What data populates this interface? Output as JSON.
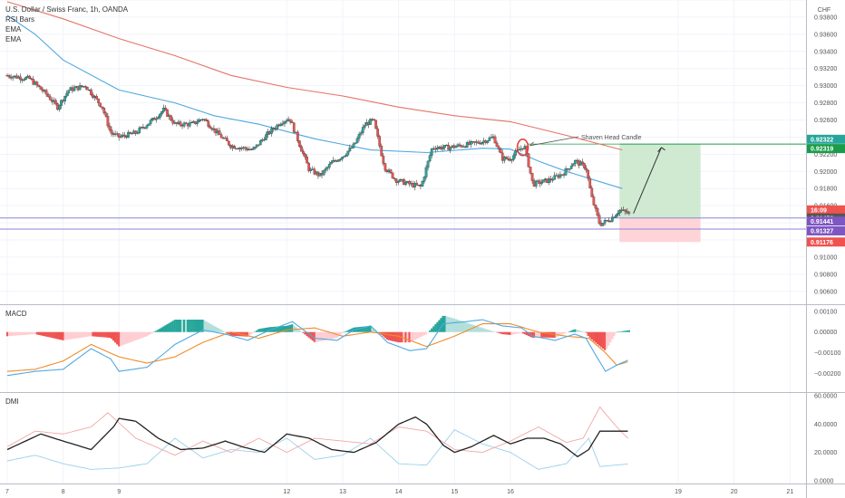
{
  "legend": {
    "main_title": "U.S. Dollar / Swiss Franc, 1h, OANDA",
    "rsi_bars": "RSI Bars",
    "ema1": "EMA",
    "ema2": "EMA",
    "macd": "MACD",
    "dmi": "DMI"
  },
  "colors": {
    "up": "#26a69a",
    "down": "#ef5350",
    "wick": "#3a3a3a",
    "ema_fast": "#4fa8e0",
    "ema_slow": "#e57368",
    "macd_line": "#4fa8e0",
    "signal_line": "#f08b2b",
    "hist_up_strong": "#26a69a",
    "hist_up_weak": "#b2dfdb",
    "hist_down_strong": "#ef5350",
    "hist_down_weak": "#ffcdd2",
    "adx": "#222222",
    "plus_di": "#9ad0ec",
    "minus_di": "#f4a6a6",
    "target_zone": "#c8e6c9",
    "stop_zone": "#ffcdd2",
    "grid": "#f0f3fa"
  },
  "annotation": {
    "label": "Shaven Head Candle"
  },
  "price_tags": [
    {
      "label": "0.92322",
      "value": 0.92322,
      "color": "#26a69a"
    },
    {
      "label": "0.92319",
      "value": 0.92319,
      "color": "#1b9c4a"
    },
    {
      "label": "16:09",
      "value": 0.9153,
      "color": "#ef5350"
    },
    {
      "label": "0.91456",
      "value": 0.91456,
      "color": "#555555"
    },
    {
      "label": "0.91441",
      "value": 0.91441,
      "color": "#7e57c2"
    },
    {
      "label": "0.91327",
      "value": 0.91327,
      "color": "#7e57c2"
    },
    {
      "label": "0.91176",
      "value": 0.91176,
      "color": "#ef5350"
    }
  ],
  "chart_data": [
    {
      "type": "candlestick",
      "title": "U.S. Dollar / Swiss Franc, 1h, OANDA",
      "ylim": [
        0.9045,
        0.94
      ],
      "y_ticks": [
        "0.94000",
        "0.93800",
        "0.93600",
        "0.93400",
        "0.93200",
        "0.93000",
        "0.92800",
        "0.92600",
        "0.92400",
        "0.92200",
        "0.92000",
        "0.91800",
        "0.91600",
        "0.91400",
        "0.91200",
        "0.91000",
        "0.90800",
        "0.90600"
      ],
      "y_axis_unit": "CHF",
      "x_ticks": [
        "7",
        "8",
        "9",
        "12",
        "13",
        "14",
        "15",
        "16",
        "19",
        "20",
        "21"
      ],
      "xlim": [
        7,
        21.4
      ],
      "close_anchors": [
        [
          7.0,
          0.9312
        ],
        [
          7.4,
          0.9308
        ],
        [
          7.7,
          0.929
        ],
        [
          7.9,
          0.9275
        ],
        [
          8.1,
          0.9295
        ],
        [
          8.4,
          0.93
        ],
        [
          8.7,
          0.9275
        ],
        [
          8.85,
          0.9245
        ],
        [
          9.0,
          0.924
        ],
        [
          9.3,
          0.9245
        ],
        [
          9.6,
          0.926
        ],
        [
          9.8,
          0.9272
        ],
        [
          10.0,
          0.9255
        ],
        [
          10.3,
          0.9255
        ],
        [
          10.5,
          0.9262
        ],
        [
          10.8,
          0.9242
        ],
        [
          11.0,
          0.923
        ],
        [
          11.4,
          0.9225
        ],
        [
          11.6,
          0.924
        ],
        [
          11.9,
          0.9258
        ],
        [
          12.05,
          0.9262
        ],
        [
          12.4,
          0.9202
        ],
        [
          12.6,
          0.9195
        ],
        [
          12.8,
          0.921
        ],
        [
          13.0,
          0.9218
        ],
        [
          13.2,
          0.923
        ],
        [
          13.4,
          0.9255
        ],
        [
          13.55,
          0.926
        ],
        [
          13.75,
          0.9205
        ],
        [
          13.95,
          0.919
        ],
        [
          14.2,
          0.9185
        ],
        [
          14.4,
          0.9182
        ],
        [
          14.6,
          0.9228
        ],
        [
          14.9,
          0.9228
        ],
        [
          15.1,
          0.923
        ],
        [
          15.3,
          0.9232
        ],
        [
          15.5,
          0.9235
        ],
        [
          15.7,
          0.924
        ],
        [
          15.85,
          0.9215
        ],
        [
          16.0,
          0.9215
        ],
        [
          16.15,
          0.9225
        ],
        [
          16.25,
          0.923
        ],
        [
          16.4,
          0.9185
        ],
        [
          16.7,
          0.919
        ],
        [
          16.95,
          0.9198
        ],
        [
          17.15,
          0.9212
        ],
        [
          17.35,
          0.9205
        ],
        [
          17.45,
          0.917
        ],
        [
          17.6,
          0.9138
        ],
        [
          17.8,
          0.9145
        ],
        [
          17.95,
          0.9155
        ],
        [
          18.15,
          0.915
        ]
      ],
      "series": [
        {
          "name": "EMA",
          "points": [
            [
              7.0,
              0.9382
            ],
            [
              7.5,
              0.936
            ],
            [
              8.0,
              0.933
            ],
            [
              9.0,
              0.9295
            ],
            [
              10.0,
              0.928
            ],
            [
              10.7,
              0.9265
            ],
            [
              11.5,
              0.9255
            ],
            [
              12.5,
              0.9238
            ],
            [
              13.5,
              0.9225
            ],
            [
              14.5,
              0.9222
            ],
            [
              15.5,
              0.9227
            ],
            [
              16.0,
              0.9226
            ],
            [
              16.5,
              0.9212
            ],
            [
              17.0,
              0.92
            ],
            [
              17.5,
              0.919
            ],
            [
              18.0,
              0.918
            ]
          ]
        },
        {
          "name": "EMA",
          "points": [
            [
              7.0,
              0.9398
            ],
            [
              8.0,
              0.9378
            ],
            [
              9.0,
              0.9355
            ],
            [
              10.0,
              0.9335
            ],
            [
              11.0,
              0.9312
            ],
            [
              12.0,
              0.9298
            ],
            [
              13.0,
              0.9288
            ],
            [
              14.0,
              0.9275
            ],
            [
              15.0,
              0.9265
            ],
            [
              16.0,
              0.9258
            ],
            [
              17.0,
              0.9242
            ],
            [
              18.0,
              0.9225
            ]
          ]
        }
      ],
      "trade": {
        "entry": 0.91456,
        "target": 0.92319,
        "stop": 0.91176,
        "x_start": 17.95,
        "x_end": 19.4
      },
      "horizontal_lines": [
        0.91456,
        0.91327
      ],
      "annotation_point": [
        16.22,
        0.9228
      ]
    },
    {
      "type": "macd",
      "title": "MACD",
      "ylim": [
        -0.0029,
        0.0013
      ],
      "y_ticks": [
        0.001,
        0.0,
        -0.001,
        -0.002
      ],
      "y_tick_labels": [
        "0.00100",
        "0.00000",
        "−0.00100",
        "−0.00200"
      ],
      "macd_anchors": [
        [
          7.0,
          -0.0021
        ],
        [
          7.5,
          -0.0019
        ],
        [
          8.0,
          -0.0018
        ],
        [
          8.5,
          -0.0008
        ],
        [
          8.85,
          -0.0013
        ],
        [
          9.0,
          -0.0019
        ],
        [
          9.5,
          -0.0017
        ],
        [
          10.0,
          -0.0006
        ],
        [
          10.5,
          0.0001
        ],
        [
          10.9,
          -0.0001
        ],
        [
          11.3,
          -0.0004
        ],
        [
          11.7,
          0.0001
        ],
        [
          12.1,
          0.0005
        ],
        [
          12.5,
          -0.0003
        ],
        [
          12.9,
          -0.0004
        ],
        [
          13.2,
          0.0001
        ],
        [
          13.5,
          0.0003
        ],
        [
          13.8,
          -0.0005
        ],
        [
          14.2,
          -0.0009
        ],
        [
          14.5,
          -0.0008
        ],
        [
          14.8,
          0.0004
        ],
        [
          15.2,
          0.0005
        ],
        [
          15.5,
          0.0006
        ],
        [
          15.85,
          0.0003
        ],
        [
          16.2,
          0.0002
        ],
        [
          16.4,
          -0.0002
        ],
        [
          16.8,
          -0.0004
        ],
        [
          17.15,
          -0.0001
        ],
        [
          17.35,
          -0.0003
        ],
        [
          17.5,
          -0.001
        ],
        [
          17.7,
          -0.0019
        ],
        [
          17.9,
          -0.0016
        ],
        [
          18.15,
          -0.0013
        ]
      ],
      "signal_anchors": [
        [
          7.0,
          -0.0019
        ],
        [
          7.5,
          -0.0018
        ],
        [
          8.0,
          -0.0014
        ],
        [
          8.5,
          -0.0006
        ],
        [
          9.0,
          -0.0012
        ],
        [
          9.5,
          -0.0015
        ],
        [
          10.0,
          -0.0012
        ],
        [
          10.5,
          -0.0005
        ],
        [
          11.0,
          0.0
        ],
        [
          11.5,
          -0.0003
        ],
        [
          12.0,
          0.0001
        ],
        [
          12.5,
          0.0002
        ],
        [
          13.0,
          -0.0002
        ],
        [
          13.5,
          0.0
        ],
        [
          14.0,
          -0.0002
        ],
        [
          14.5,
          -0.0007
        ],
        [
          15.0,
          -0.0002
        ],
        [
          15.5,
          0.0004
        ],
        [
          16.0,
          0.0004
        ],
        [
          16.5,
          0.0
        ],
        [
          17.0,
          -0.0002
        ],
        [
          17.4,
          -0.0003
        ],
        [
          17.7,
          -0.001
        ],
        [
          17.9,
          -0.0016
        ],
        [
          18.15,
          -0.0014
        ]
      ]
    },
    {
      "type": "dmi",
      "title": "DMI",
      "ylim": [
        -2,
        62
      ],
      "y_ticks": [
        60,
        40,
        20,
        0
      ],
      "y_tick_labels": [
        "60.0000",
        "40.0000",
        "20.0000",
        "0.0000"
      ],
      "adx_anchors": [
        [
          7.0,
          22
        ],
        [
          7.6,
          33
        ],
        [
          8.0,
          28
        ],
        [
          8.5,
          22
        ],
        [
          8.9,
          38
        ],
        [
          9.0,
          44
        ],
        [
          9.3,
          42
        ],
        [
          9.7,
          30
        ],
        [
          10.1,
          22
        ],
        [
          10.5,
          23
        ],
        [
          10.9,
          28
        ],
        [
          11.2,
          24
        ],
        [
          11.6,
          20
        ],
        [
          12.0,
          33
        ],
        [
          12.4,
          30
        ],
        [
          12.8,
          22
        ],
        [
          13.2,
          20
        ],
        [
          13.6,
          27
        ],
        [
          14.0,
          40
        ],
        [
          14.3,
          45
        ],
        [
          14.5,
          40
        ],
        [
          14.8,
          25
        ],
        [
          15.0,
          20
        ],
        [
          15.3,
          24
        ],
        [
          15.7,
          32
        ],
        [
          16.0,
          26
        ],
        [
          16.3,
          30
        ],
        [
          16.6,
          30
        ],
        [
          16.9,
          26
        ],
        [
          17.2,
          17
        ],
        [
          17.4,
          22
        ],
        [
          17.6,
          35
        ],
        [
          18.15,
          35
        ]
      ],
      "plus_di_anchors": [
        [
          7.0,
          14
        ],
        [
          7.5,
          18
        ],
        [
          8.0,
          12
        ],
        [
          8.5,
          8
        ],
        [
          9.0,
          9
        ],
        [
          9.5,
          12
        ],
        [
          10.0,
          30
        ],
        [
          10.5,
          16
        ],
        [
          11.0,
          22
        ],
        [
          11.5,
          20
        ],
        [
          12.0,
          30
        ],
        [
          12.5,
          15
        ],
        [
          13.0,
          18
        ],
        [
          13.5,
          30
        ],
        [
          14.0,
          12
        ],
        [
          14.5,
          11
        ],
        [
          15.0,
          36
        ],
        [
          15.5,
          26
        ],
        [
          16.0,
          20
        ],
        [
          16.5,
          8
        ],
        [
          17.0,
          12
        ],
        [
          17.4,
          30
        ],
        [
          17.6,
          10
        ],
        [
          18.15,
          12
        ]
      ],
      "minus_di_anchors": [
        [
          7.0,
          24
        ],
        [
          7.5,
          35
        ],
        [
          8.0,
          33
        ],
        [
          8.5,
          38
        ],
        [
          8.8,
          48
        ],
        [
          9.3,
          30
        ],
        [
          10.0,
          18
        ],
        [
          10.5,
          28
        ],
        [
          11.0,
          20
        ],
        [
          11.5,
          30
        ],
        [
          12.0,
          20
        ],
        [
          12.5,
          30
        ],
        [
          13.0,
          28
        ],
        [
          13.5,
          26
        ],
        [
          14.0,
          38
        ],
        [
          14.5,
          35
        ],
        [
          15.0,
          22
        ],
        [
          15.5,
          20
        ],
        [
          16.0,
          28
        ],
        [
          16.5,
          38
        ],
        [
          17.0,
          27
        ],
        [
          17.3,
          30
        ],
        [
          17.6,
          52
        ],
        [
          17.9,
          38
        ],
        [
          18.15,
          28
        ]
      ]
    }
  ]
}
